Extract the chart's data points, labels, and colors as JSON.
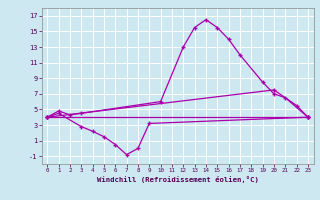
{
  "xlabel": "Windchill (Refroidissement éolien,°C)",
  "bg_color": "#cde8f0",
  "grid_color": "#ffffff",
  "line_color": "#aa00aa",
  "ylim": [
    -2,
    18
  ],
  "xlim": [
    -0.5,
    23.5
  ],
  "yticks": [
    -1,
    1,
    3,
    5,
    7,
    9,
    11,
    13,
    15,
    17
  ],
  "xticks": [
    0,
    1,
    2,
    3,
    4,
    5,
    6,
    7,
    8,
    9,
    10,
    11,
    12,
    13,
    14,
    15,
    16,
    17,
    18,
    19,
    20,
    21,
    22,
    23
  ],
  "line1_x": [
    0,
    1,
    2,
    3,
    10,
    12,
    13,
    14,
    15,
    16,
    17,
    19,
    20,
    21,
    23
  ],
  "line1_y": [
    4.0,
    4.8,
    4.3,
    4.5,
    6.0,
    13.0,
    15.5,
    16.5,
    15.5,
    14.0,
    12.0,
    8.5,
    7.0,
    6.5,
    4.0
  ],
  "line2_x": [
    0,
    23
  ],
  "line2_y": [
    4.0,
    4.0
  ],
  "line3_x": [
    0,
    20,
    22,
    23
  ],
  "line3_y": [
    4.0,
    7.5,
    5.5,
    4.0
  ],
  "line4_x": [
    0,
    1,
    3,
    4,
    5,
    6,
    7,
    8,
    9,
    23
  ],
  "line4_y": [
    4.0,
    4.5,
    2.8,
    2.2,
    1.5,
    0.5,
    -0.8,
    0.0,
    3.2,
    4.0
  ]
}
